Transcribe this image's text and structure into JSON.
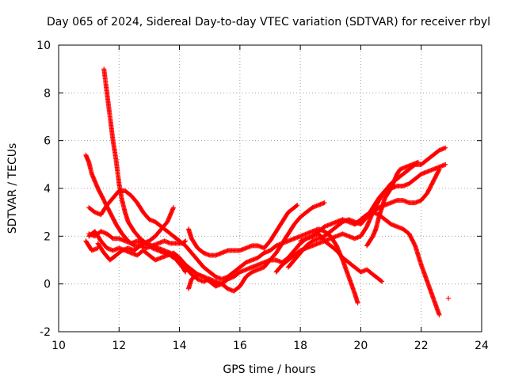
{
  "chart_data": {
    "type": "scatter",
    "title": "Day 065 of 2024, Sidereal Day-to-day VTEC variation (SDTVAR) for receiver rbyl",
    "xlabel": "GPS time / hours",
    "ylabel": "SDTVAR / TECUs",
    "xlim": [
      10,
      24
    ],
    "ylim": [
      -2,
      10
    ],
    "xticks": [
      10,
      12,
      14,
      16,
      18,
      20,
      22,
      24
    ],
    "yticks": [
      -2,
      0,
      2,
      4,
      6,
      8,
      10
    ],
    "grid": true,
    "legend": "none",
    "marker": "+",
    "marker_color": "#ff0000",
    "series": [
      {
        "name": "trace-1",
        "x": [
          11.5,
          11.6,
          11.7,
          11.8,
          11.9,
          12.0,
          12.1,
          12.2,
          12.3,
          12.5,
          12.7,
          12.9,
          13.1,
          13.3,
          13.5,
          13.7,
          13.8,
          14.0,
          14.2,
          14.4,
          14.6,
          14.8,
          15.0,
          15.2
        ],
        "y": [
          9.0,
          8.0,
          7.0,
          6.0,
          5.2,
          4.2,
          3.5,
          3.0,
          2.6,
          2.2,
          1.9,
          1.7,
          1.5,
          1.4,
          1.3,
          1.2,
          1.1,
          1.0,
          0.7,
          0.4,
          0.2,
          0.1,
          0.2,
          0.0
        ]
      },
      {
        "name": "trace-2",
        "x": [
          10.9,
          11.0,
          11.1,
          11.3,
          11.5,
          11.7,
          11.9,
          12.1,
          12.3,
          12.5,
          12.7,
          12.9,
          13.1,
          13.3,
          13.5,
          13.7,
          13.9,
          14.1,
          14.2
        ],
        "y": [
          5.4,
          5.1,
          4.6,
          4.0,
          3.5,
          3.0,
          2.5,
          2.1,
          1.8,
          1.6,
          1.6,
          1.7,
          1.6,
          1.5,
          1.4,
          1.3,
          1.0,
          0.7,
          0.5
        ]
      },
      {
        "name": "trace-3",
        "x": [
          11.0,
          11.2,
          11.4,
          11.6,
          11.8,
          12.0,
          12.2,
          12.4,
          12.6,
          12.8,
          13.0,
          13.2,
          13.4,
          13.6,
          13.8,
          14.0,
          14.2,
          14.4,
          14.6,
          14.8,
          15.0,
          15.2,
          15.4,
          15.6,
          15.8,
          16.0,
          16.2,
          16.4,
          16.6,
          16.8,
          17.0,
          17.2,
          17.4,
          17.6,
          17.8,
          18.0,
          18.2,
          18.4,
          18.6,
          18.8,
          19.0,
          19.2,
          19.4,
          19.6,
          19.8,
          20.0,
          20.2,
          20.4,
          20.6,
          20.7
        ],
        "y": [
          2.0,
          2.2,
          1.8,
          1.5,
          1.4,
          1.5,
          1.4,
          1.3,
          1.2,
          1.4,
          1.2,
          1.0,
          1.1,
          1.2,
          1.3,
          1.1,
          0.8,
          0.6,
          0.4,
          0.3,
          0.2,
          0.1,
          0.0,
          0.2,
          0.3,
          0.5,
          0.6,
          0.7,
          0.8,
          0.9,
          1.0,
          1.0,
          0.9,
          1.1,
          1.4,
          1.7,
          1.9,
          2.0,
          2.1,
          1.8,
          1.6,
          1.4,
          1.1,
          0.9,
          0.7,
          0.5,
          0.6,
          0.4,
          0.2,
          0.1
        ]
      },
      {
        "name": "trace-4",
        "x": [
          11.0,
          11.2,
          11.4,
          11.6,
          11.8,
          12.0,
          12.2,
          12.4,
          12.6,
          12.8,
          13.0,
          13.2,
          13.4,
          13.6,
          13.8,
          14.0,
          14.2,
          14.4,
          14.6,
          14.8,
          15.0,
          15.2,
          15.4,
          15.6,
          15.8,
          16.0,
          16.2,
          16.4,
          16.6,
          16.8,
          17.0,
          17.2,
          17.4,
          17.6,
          17.8,
          18.0,
          18.2,
          18.4,
          18.6,
          18.8,
          19.0,
          19.2,
          19.4,
          19.6,
          19.8,
          19.9
        ],
        "y": [
          3.2,
          3.0,
          2.9,
          3.3,
          3.6,
          3.9,
          3.9,
          3.7,
          3.4,
          3.0,
          2.7,
          2.6,
          2.4,
          2.2,
          2.0,
          1.8,
          1.6,
          1.3,
          1.0,
          0.7,
          0.5,
          0.3,
          0.2,
          0.3,
          0.5,
          0.7,
          0.9,
          1.0,
          1.1,
          1.3,
          1.4,
          1.6,
          1.7,
          1.8,
          1.9,
          2.0,
          2.1,
          2.2,
          2.3,
          2.2,
          2.0,
          1.6,
          1.0,
          0.3,
          -0.4,
          -0.8
        ]
      },
      {
        "name": "trace-5",
        "x": [
          11.0,
          11.2,
          11.4,
          11.6,
          11.8,
          12.0,
          12.2,
          12.4,
          12.6,
          12.8,
          13.0,
          13.2,
          13.4,
          13.6,
          13.8
        ],
        "y": [
          2.1,
          2.0,
          2.2,
          2.1,
          1.9,
          1.9,
          1.8,
          1.7,
          1.8,
          1.7,
          1.8,
          2.0,
          2.3,
          2.6,
          3.2
        ]
      },
      {
        "name": "trace-6",
        "x": [
          11.3,
          11.5,
          11.7,
          11.9,
          12.1,
          12.3,
          12.5,
          12.7,
          12.9,
          13.1,
          13.3,
          13.5,
          13.7,
          13.9,
          14.1,
          14.2
        ],
        "y": [
          1.7,
          1.3,
          1.0,
          1.2,
          1.4,
          1.5,
          1.4,
          1.6,
          1.5,
          1.6,
          1.7,
          1.8,
          1.7,
          1.7,
          1.7,
          1.8
        ]
      },
      {
        "name": "trace-7",
        "x": [
          10.9,
          11.0,
          11.1,
          11.3
        ],
        "y": [
          1.8,
          1.6,
          1.4,
          1.5
        ]
      },
      {
        "name": "trace-8",
        "x": [
          14.3,
          14.4,
          14.6,
          14.8,
          15.0,
          15.2,
          15.4,
          15.6,
          15.8,
          16.0,
          16.2,
          16.4,
          16.6,
          16.8,
          17.0,
          17.2,
          17.4,
          17.6,
          17.8,
          17.9
        ],
        "y": [
          2.3,
          1.9,
          1.5,
          1.3,
          1.2,
          1.2,
          1.3,
          1.4,
          1.4,
          1.4,
          1.5,
          1.6,
          1.6,
          1.5,
          1.8,
          2.2,
          2.6,
          3.0,
          3.2,
          3.3
        ]
      },
      {
        "name": "trace-9",
        "x": [
          14.3,
          14.4,
          14.6,
          14.8,
          15.0,
          15.2,
          15.4,
          15.6,
          15.8,
          16.0,
          16.2,
          16.4,
          16.6,
          16.8,
          17.0,
          17.2,
          17.4,
          17.6,
          17.8,
          18.0,
          18.2,
          18.4,
          18.6,
          18.8
        ],
        "y": [
          -0.2,
          0.2,
          0.4,
          0.3,
          0.1,
          -0.1,
          0.0,
          -0.2,
          -0.3,
          -0.1,
          0.3,
          0.5,
          0.6,
          0.7,
          1.0,
          1.3,
          1.7,
          2.1,
          2.5,
          2.8,
          3.0,
          3.2,
          3.3,
          3.4
        ]
      },
      {
        "name": "trace-10",
        "x": [
          17.2,
          17.4,
          17.6,
          17.8,
          18.0,
          18.2,
          18.4,
          18.6,
          18.8,
          19.0,
          19.2,
          19.4,
          19.6,
          19.8,
          20.0,
          20.2,
          20.4,
          20.6,
          20.8,
          21.0,
          21.2,
          21.4,
          21.6,
          21.8,
          22.0,
          22.2,
          22.4,
          22.6,
          22.8
        ],
        "y": [
          0.5,
          0.8,
          1.0,
          1.2,
          1.4,
          1.5,
          1.6,
          1.7,
          1.8,
          1.9,
          2.0,
          2.1,
          2.0,
          1.9,
          2.0,
          2.4,
          3.0,
          3.5,
          3.9,
          4.2,
          4.4,
          4.6,
          4.8,
          5.0,
          5.0,
          5.2,
          5.4,
          5.6,
          5.7
        ]
      },
      {
        "name": "trace-11",
        "x": [
          17.6,
          17.8,
          18.0,
          18.2,
          18.4,
          18.6,
          18.8,
          19.0,
          19.2,
          19.4,
          19.6,
          19.8,
          20.0,
          20.2,
          20.4,
          20.6,
          20.8,
          21.0,
          21.2,
          21.4,
          21.6,
          21.8,
          22.0,
          22.2,
          22.4,
          22.6,
          22.8
        ],
        "y": [
          0.7,
          1.0,
          1.3,
          1.6,
          1.8,
          1.9,
          2.0,
          2.2,
          2.4,
          2.6,
          2.7,
          2.6,
          2.5,
          2.8,
          3.2,
          3.6,
          3.9,
          4.0,
          4.1,
          4.1,
          4.2,
          4.4,
          4.6,
          4.7,
          4.8,
          4.9,
          5.0
        ]
      },
      {
        "name": "trace-12",
        "x": [
          18.0,
          18.2,
          18.4,
          18.6,
          18.8,
          19.0,
          19.2,
          19.4,
          19.6,
          19.8,
          20.0,
          20.2,
          20.4,
          20.6,
          20.8,
          21.0,
          21.2,
          21.4,
          21.6,
          21.8,
          22.0,
          22.2,
          22.4,
          22.6
        ],
        "y": [
          1.8,
          1.9,
          2.0,
          2.2,
          2.4,
          2.5,
          2.6,
          2.7,
          2.6,
          2.5,
          2.6,
          2.8,
          3.0,
          3.2,
          3.3,
          3.4,
          3.5,
          3.5,
          3.4,
          3.4,
          3.5,
          3.8,
          4.3,
          4.8
        ]
      },
      {
        "name": "trace-13",
        "x": [
          19.8,
          20.0,
          20.2,
          20.4,
          20.6,
          20.8,
          21.0,
          21.2,
          21.4,
          21.6,
          21.8,
          22.0,
          22.2,
          22.4,
          22.6
        ],
        "y": [
          2.5,
          2.7,
          2.9,
          3.0,
          2.9,
          2.7,
          2.5,
          2.4,
          2.3,
          2.1,
          1.6,
          0.8,
          0.1,
          -0.6,
          -1.3
        ]
      },
      {
        "name": "trace-14",
        "x": [
          20.2,
          20.4,
          20.5,
          20.6,
          20.7,
          20.8,
          20.9,
          21.0,
          21.1,
          21.2,
          21.3,
          21.5,
          21.7,
          21.9
        ],
        "y": [
          1.6,
          2.0,
          2.3,
          2.8,
          3.2,
          3.6,
          3.8,
          4.0,
          4.3,
          4.6,
          4.8,
          4.9,
          5.0,
          5.1
        ]
      },
      {
        "name": "outlier",
        "x": [
          22.9
        ],
        "y": [
          -0.6
        ]
      }
    ]
  }
}
